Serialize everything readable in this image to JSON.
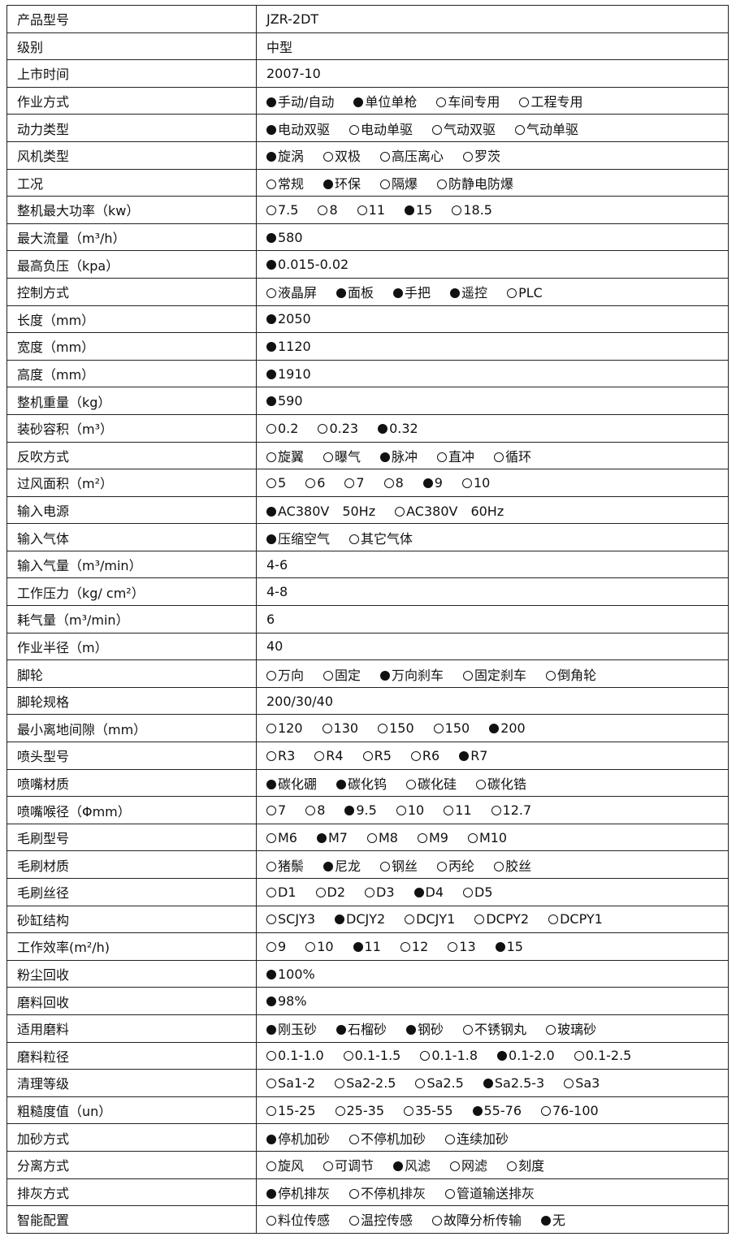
{
  "rows": [
    {
      "label": "产品型号",
      "value": "JZR-2DT"
    },
    {
      "label": "级别",
      "value": "中型"
    },
    {
      "label": "上市时间",
      "value": "2007-10"
    },
    {
      "label": "作业方式",
      "options": [
        {
          "label": "手动/自动",
          "selected": true
        },
        {
          "label": "单位单枪",
          "selected": true
        },
        {
          "label": "车间专用",
          "selected": false
        },
        {
          "label": "工程专用",
          "selected": false
        }
      ]
    },
    {
      "label": "动力类型",
      "options": [
        {
          "label": "电动双驱",
          "selected": true
        },
        {
          "label": "电动单驱",
          "selected": false
        },
        {
          "label": "气动双驱",
          "selected": false
        },
        {
          "label": "气动单驱",
          "selected": false
        }
      ]
    },
    {
      "label": "风机类型",
      "options": [
        {
          "label": "旋涡",
          "selected": true
        },
        {
          "label": "双极",
          "selected": false
        },
        {
          "label": "高压离心",
          "selected": false
        },
        {
          "label": "罗茨",
          "selected": false
        }
      ]
    },
    {
      "label": "工况",
      "options": [
        {
          "label": "常规",
          "selected": false
        },
        {
          "label": "环保",
          "selected": true
        },
        {
          "label": "隔爆",
          "selected": false
        },
        {
          "label": "防静电防爆",
          "selected": false
        }
      ]
    },
    {
      "label": "整机最大功率（kw）",
      "options": [
        {
          "label": "7.5",
          "selected": false
        },
        {
          "label": "8",
          "selected": false
        },
        {
          "label": "11",
          "selected": false
        },
        {
          "label": "15",
          "selected": true
        },
        {
          "label": "18.5",
          "selected": false
        }
      ]
    },
    {
      "label": "最大流量（m³/h）",
      "options": [
        {
          "label": "580",
          "selected": true
        }
      ]
    },
    {
      "label": "最高负压（kpa）",
      "options": [
        {
          "label": "0.015-0.02",
          "selected": true
        }
      ]
    },
    {
      "label": "控制方式",
      "options": [
        {
          "label": "液晶屏",
          "selected": false
        },
        {
          "label": "面板",
          "selected": true
        },
        {
          "label": "手把",
          "selected": true
        },
        {
          "label": "遥控",
          "selected": true
        },
        {
          "label": "PLC",
          "selected": false
        }
      ]
    },
    {
      "label": "长度（mm）",
      "options": [
        {
          "label": "2050",
          "selected": true
        }
      ]
    },
    {
      "label": "宽度（mm）",
      "options": [
        {
          "label": "1120",
          "selected": true
        }
      ]
    },
    {
      "label": "高度（mm）",
      "options": [
        {
          "label": "1910",
          "selected": true
        }
      ]
    },
    {
      "label": "整机重量（kg）",
      "options": [
        {
          "label": "590",
          "selected": true
        }
      ]
    },
    {
      "label": "装砂容积（m³）",
      "options": [
        {
          "label": "0.2",
          "selected": false
        },
        {
          "label": "0.23",
          "selected": false
        },
        {
          "label": "0.32",
          "selected": true
        }
      ]
    },
    {
      "label": "反吹方式",
      "options": [
        {
          "label": "旋翼",
          "selected": false
        },
        {
          "label": "曝气",
          "selected": false
        },
        {
          "label": "脉冲",
          "selected": true
        },
        {
          "label": "直冲",
          "selected": false
        },
        {
          "label": "循环",
          "selected": false
        }
      ]
    },
    {
      "label": "过风面积（m²）",
      "options": [
        {
          "label": "5",
          "selected": false
        },
        {
          "label": "6",
          "selected": false
        },
        {
          "label": "7",
          "selected": false
        },
        {
          "label": "8",
          "selected": false
        },
        {
          "label": "9",
          "selected": true
        },
        {
          "label": "10",
          "selected": false
        }
      ]
    },
    {
      "label": "输入电源",
      "options": [
        {
          "label": "AC380V　50Hz",
          "selected": true
        },
        {
          "label": "AC380V　60Hz",
          "selected": false
        }
      ]
    },
    {
      "label": "输入气体",
      "options": [
        {
          "label": "压缩空气",
          "selected": true
        },
        {
          "label": "其它气体",
          "selected": false
        }
      ]
    },
    {
      "label": "输入气量（m³/min）",
      "value": "4-6"
    },
    {
      "label": "工作压力（kg/ cm²）",
      "value": "4-8"
    },
    {
      "label": "耗气量（m³/min）",
      "value": "6"
    },
    {
      "label": "作业半径（m）",
      "value": "40"
    },
    {
      "label": "脚轮",
      "options": [
        {
          "label": "万向",
          "selected": false
        },
        {
          "label": "固定",
          "selected": false
        },
        {
          "label": "万向刹车",
          "selected": true
        },
        {
          "label": "固定刹车",
          "selected": false
        },
        {
          "label": "倒角轮",
          "selected": false
        }
      ]
    },
    {
      "label": "脚轮规格",
      "value": "200/30/40"
    },
    {
      "label": "最小离地间隙（mm）",
      "options": [
        {
          "label": "120",
          "selected": false
        },
        {
          "label": "130",
          "selected": false
        },
        {
          "label": "150",
          "selected": false
        },
        {
          "label": "150",
          "selected": false
        },
        {
          "label": "200",
          "selected": true
        }
      ]
    },
    {
      "label": "喷头型号",
      "options": [
        {
          "label": "R3",
          "selected": false
        },
        {
          "label": "R4",
          "selected": false
        },
        {
          "label": "R5",
          "selected": false
        },
        {
          "label": "R6",
          "selected": false
        },
        {
          "label": "R7",
          "selected": true
        }
      ]
    },
    {
      "label": "喷嘴材质",
      "options": [
        {
          "label": "碳化硼",
          "selected": true
        },
        {
          "label": "碳化钨",
          "selected": true
        },
        {
          "label": "碳化硅",
          "selected": false
        },
        {
          "label": "碳化锆",
          "selected": false
        }
      ]
    },
    {
      "label": "喷嘴喉径（Φmm）",
      "options": [
        {
          "label": "7",
          "selected": false
        },
        {
          "label": "8",
          "selected": false
        },
        {
          "label": "9.5",
          "selected": true
        },
        {
          "label": "10",
          "selected": false
        },
        {
          "label": "11",
          "selected": false
        },
        {
          "label": "12.7",
          "selected": false
        }
      ]
    },
    {
      "label": "毛刷型号",
      "options": [
        {
          "label": "M6",
          "selected": false
        },
        {
          "label": "M7",
          "selected": true
        },
        {
          "label": "M8",
          "selected": false
        },
        {
          "label": "M9",
          "selected": false
        },
        {
          "label": "M10",
          "selected": false
        }
      ]
    },
    {
      "label": "毛刷材质",
      "options": [
        {
          "label": "猪鬃",
          "selected": false
        },
        {
          "label": "尼龙",
          "selected": true
        },
        {
          "label": "钢丝",
          "selected": false
        },
        {
          "label": "丙纶",
          "selected": false
        },
        {
          "label": "胶丝",
          "selected": false
        }
      ]
    },
    {
      "label": "毛刷丝径",
      "options": [
        {
          "label": "D1",
          "selected": false
        },
        {
          "label": "D2",
          "selected": false
        },
        {
          "label": "D3",
          "selected": false
        },
        {
          "label": "D4",
          "selected": true
        },
        {
          "label": "D5",
          "selected": false
        }
      ]
    },
    {
      "label": "砂缸结构",
      "options": [
        {
          "label": "SCJY3",
          "selected": false
        },
        {
          "label": "DCJY2",
          "selected": true
        },
        {
          "label": "DCJY1",
          "selected": false
        },
        {
          "label": "DCPY2",
          "selected": false
        },
        {
          "label": "DCPY1",
          "selected": false
        }
      ]
    },
    {
      "label": "工作效率(m²/h)",
      "options": [
        {
          "label": "9",
          "selected": false
        },
        {
          "label": "10",
          "selected": false
        },
        {
          "label": "11",
          "selected": true
        },
        {
          "label": "12",
          "selected": false
        },
        {
          "label": "13",
          "selected": false
        },
        {
          "label": "15",
          "selected": true
        }
      ]
    },
    {
      "label": "粉尘回收",
      "options": [
        {
          "label": "100%",
          "selected": true
        }
      ]
    },
    {
      "label": "磨料回收",
      "options": [
        {
          "label": "98%",
          "selected": true
        }
      ]
    },
    {
      "label": "适用磨料",
      "options": [
        {
          "label": "刚玉砂",
          "selected": true
        },
        {
          "label": "石榴砂",
          "selected": true
        },
        {
          "label": "钢砂",
          "selected": true
        },
        {
          "label": "不锈钢丸",
          "selected": false
        },
        {
          "label": "玻璃砂",
          "selected": false
        }
      ]
    },
    {
      "label": "磨料粒径",
      "options": [
        {
          "label": "0.1-1.0",
          "selected": false
        },
        {
          "label": "0.1-1.5",
          "selected": false
        },
        {
          "label": "0.1-1.8",
          "selected": false
        },
        {
          "label": "0.1-2.0",
          "selected": true
        },
        {
          "label": "0.1-2.5",
          "selected": false
        }
      ]
    },
    {
      "label": "清理等级",
      "options": [
        {
          "label": "Sa1-2",
          "selected": false
        },
        {
          "label": "Sa2-2.5",
          "selected": false
        },
        {
          "label": "Sa2.5",
          "selected": false
        },
        {
          "label": "Sa2.5-3",
          "selected": true
        },
        {
          "label": "Sa3",
          "selected": false
        }
      ]
    },
    {
      "label": "粗糙度值（un）",
      "options": [
        {
          "label": "15-25",
          "selected": false
        },
        {
          "label": "25-35",
          "selected": false
        },
        {
          "label": "35-55",
          "selected": false
        },
        {
          "label": "55-76",
          "selected": true
        },
        {
          "label": "76-100",
          "selected": false
        }
      ]
    },
    {
      "label": "加砂方式",
      "options": [
        {
          "label": "停机加砂",
          "selected": true
        },
        {
          "label": "不停机加砂",
          "selected": false
        },
        {
          "label": "连续加砂",
          "selected": false
        }
      ]
    },
    {
      "label": "分离方式",
      "options": [
        {
          "label": "旋风",
          "selected": false
        },
        {
          "label": "可调节",
          "selected": false
        },
        {
          "label": "风滤",
          "selected": true
        },
        {
          "label": "网滤",
          "selected": false
        },
        {
          "label": "刻度",
          "selected": false
        }
      ]
    },
    {
      "label": "排灰方式",
      "options": [
        {
          "label": "停机排灰",
          "selected": true
        },
        {
          "label": "不停机排灰",
          "selected": false
        },
        {
          "label": "管道输送排灰",
          "selected": false
        }
      ]
    },
    {
      "label": "智能配置",
      "options": [
        {
          "label": "料位传感",
          "selected": false
        },
        {
          "label": "温控传感",
          "selected": false
        },
        {
          "label": "故障分析传输",
          "selected": false
        },
        {
          "label": "无",
          "selected": true
        }
      ]
    }
  ]
}
